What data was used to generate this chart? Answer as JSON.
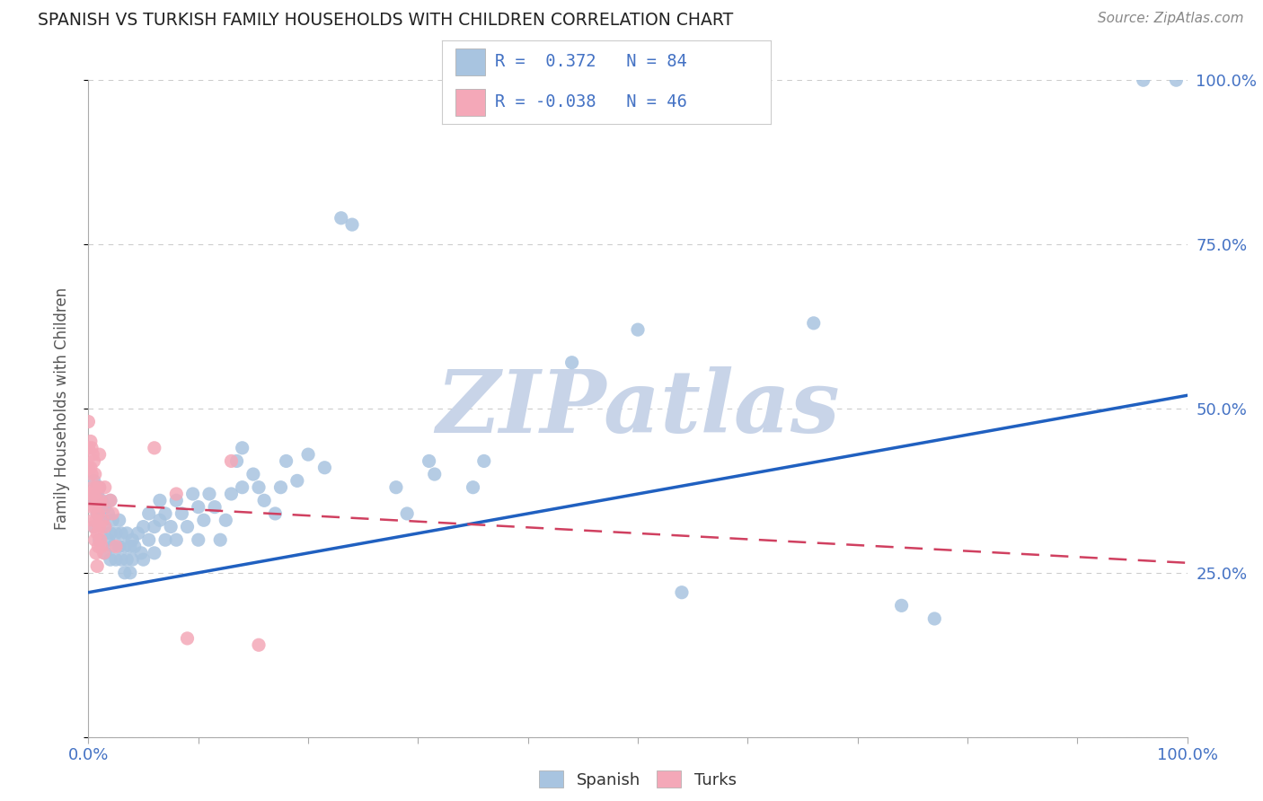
{
  "title": "SPANISH VS TURKISH FAMILY HOUSEHOLDS WITH CHILDREN CORRELATION CHART",
  "source": "Source: ZipAtlas.com",
  "ylabel": "Family Households with Children",
  "watermark": "ZIPatlas",
  "spanish_color": "#a8c4e0",
  "turks_color": "#f4a8b8",
  "line_spanish_color": "#2060c0",
  "line_turks_color": "#d04060",
  "background_color": "#ffffff",
  "grid_color": "#cccccc",
  "title_color": "#222222",
  "axis_label_color": "#4472c4",
  "watermark_color": "#c8d4e8",
  "xlim": [
    0.0,
    1.0
  ],
  "ylim": [
    0.0,
    1.0
  ],
  "spanish_scatter": [
    [
      0.005,
      0.36
    ],
    [
      0.005,
      0.39
    ],
    [
      0.005,
      0.32
    ],
    [
      0.008,
      0.34
    ],
    [
      0.008,
      0.37
    ],
    [
      0.01,
      0.3
    ],
    [
      0.01,
      0.35
    ],
    [
      0.01,
      0.38
    ],
    [
      0.012,
      0.33
    ],
    [
      0.012,
      0.36
    ],
    [
      0.015,
      0.28
    ],
    [
      0.015,
      0.32
    ],
    [
      0.015,
      0.35
    ],
    [
      0.018,
      0.3
    ],
    [
      0.018,
      0.34
    ],
    [
      0.02,
      0.27
    ],
    [
      0.02,
      0.31
    ],
    [
      0.02,
      0.36
    ],
    [
      0.022,
      0.29
    ],
    [
      0.022,
      0.33
    ],
    [
      0.025,
      0.27
    ],
    [
      0.025,
      0.31
    ],
    [
      0.028,
      0.29
    ],
    [
      0.028,
      0.33
    ],
    [
      0.03,
      0.27
    ],
    [
      0.03,
      0.31
    ],
    [
      0.033,
      0.25
    ],
    [
      0.033,
      0.29
    ],
    [
      0.035,
      0.27
    ],
    [
      0.035,
      0.31
    ],
    [
      0.038,
      0.25
    ],
    [
      0.038,
      0.29
    ],
    [
      0.04,
      0.3
    ],
    [
      0.04,
      0.27
    ],
    [
      0.042,
      0.29
    ],
    [
      0.045,
      0.31
    ],
    [
      0.048,
      0.28
    ],
    [
      0.05,
      0.32
    ],
    [
      0.05,
      0.27
    ],
    [
      0.055,
      0.3
    ],
    [
      0.055,
      0.34
    ],
    [
      0.06,
      0.28
    ],
    [
      0.06,
      0.32
    ],
    [
      0.065,
      0.36
    ],
    [
      0.065,
      0.33
    ],
    [
      0.07,
      0.3
    ],
    [
      0.07,
      0.34
    ],
    [
      0.075,
      0.32
    ],
    [
      0.08,
      0.36
    ],
    [
      0.08,
      0.3
    ],
    [
      0.085,
      0.34
    ],
    [
      0.09,
      0.32
    ],
    [
      0.095,
      0.37
    ],
    [
      0.1,
      0.35
    ],
    [
      0.1,
      0.3
    ],
    [
      0.105,
      0.33
    ],
    [
      0.11,
      0.37
    ],
    [
      0.115,
      0.35
    ],
    [
      0.12,
      0.3
    ],
    [
      0.125,
      0.33
    ],
    [
      0.13,
      0.37
    ],
    [
      0.135,
      0.42
    ],
    [
      0.14,
      0.38
    ],
    [
      0.14,
      0.44
    ],
    [
      0.15,
      0.4
    ],
    [
      0.155,
      0.38
    ],
    [
      0.16,
      0.36
    ],
    [
      0.17,
      0.34
    ],
    [
      0.175,
      0.38
    ],
    [
      0.18,
      0.42
    ],
    [
      0.19,
      0.39
    ],
    [
      0.2,
      0.43
    ],
    [
      0.215,
      0.41
    ],
    [
      0.23,
      0.79
    ],
    [
      0.24,
      0.78
    ],
    [
      0.28,
      0.38
    ],
    [
      0.29,
      0.34
    ],
    [
      0.31,
      0.42
    ],
    [
      0.315,
      0.4
    ],
    [
      0.35,
      0.38
    ],
    [
      0.36,
      0.42
    ],
    [
      0.44,
      0.57
    ],
    [
      0.5,
      0.62
    ],
    [
      0.54,
      0.22
    ],
    [
      0.66,
      0.63
    ],
    [
      0.74,
      0.2
    ],
    [
      0.77,
      0.18
    ],
    [
      0.96,
      1.0
    ],
    [
      0.99,
      1.0
    ]
  ],
  "turks_scatter": [
    [
      0.0,
      0.48
    ],
    [
      0.0,
      0.44
    ],
    [
      0.0,
      0.41
    ],
    [
      0.0,
      0.37
    ],
    [
      0.002,
      0.45
    ],
    [
      0.002,
      0.41
    ],
    [
      0.002,
      0.37
    ],
    [
      0.003,
      0.44
    ],
    [
      0.003,
      0.4
    ],
    [
      0.003,
      0.35
    ],
    [
      0.004,
      0.43
    ],
    [
      0.004,
      0.38
    ],
    [
      0.004,
      0.33
    ],
    [
      0.005,
      0.42
    ],
    [
      0.005,
      0.37
    ],
    [
      0.005,
      0.32
    ],
    [
      0.006,
      0.4
    ],
    [
      0.006,
      0.35
    ],
    [
      0.006,
      0.3
    ],
    [
      0.007,
      0.38
    ],
    [
      0.007,
      0.33
    ],
    [
      0.007,
      0.28
    ],
    [
      0.008,
      0.36
    ],
    [
      0.008,
      0.31
    ],
    [
      0.008,
      0.26
    ],
    [
      0.009,
      0.34
    ],
    [
      0.009,
      0.29
    ],
    [
      0.01,
      0.43
    ],
    [
      0.01,
      0.38
    ],
    [
      0.01,
      0.32
    ],
    [
      0.011,
      0.36
    ],
    [
      0.011,
      0.3
    ],
    [
      0.012,
      0.35
    ],
    [
      0.012,
      0.29
    ],
    [
      0.013,
      0.33
    ],
    [
      0.014,
      0.28
    ],
    [
      0.015,
      0.38
    ],
    [
      0.015,
      0.32
    ],
    [
      0.02,
      0.36
    ],
    [
      0.022,
      0.34
    ],
    [
      0.025,
      0.29
    ],
    [
      0.06,
      0.44
    ],
    [
      0.08,
      0.37
    ],
    [
      0.09,
      0.15
    ],
    [
      0.13,
      0.42
    ],
    [
      0.155,
      0.14
    ]
  ],
  "spanish_line_x": [
    0.0,
    1.0
  ],
  "spanish_line_y": [
    0.22,
    0.52
  ],
  "turks_line_x": [
    0.0,
    1.0
  ],
  "turks_line_y": [
    0.355,
    0.265
  ],
  "yticks": [
    0.0,
    0.25,
    0.5,
    0.75,
    1.0
  ],
  "right_ytick_labels": [
    "",
    "25.0%",
    "50.0%",
    "75.0%",
    "100.0%"
  ]
}
